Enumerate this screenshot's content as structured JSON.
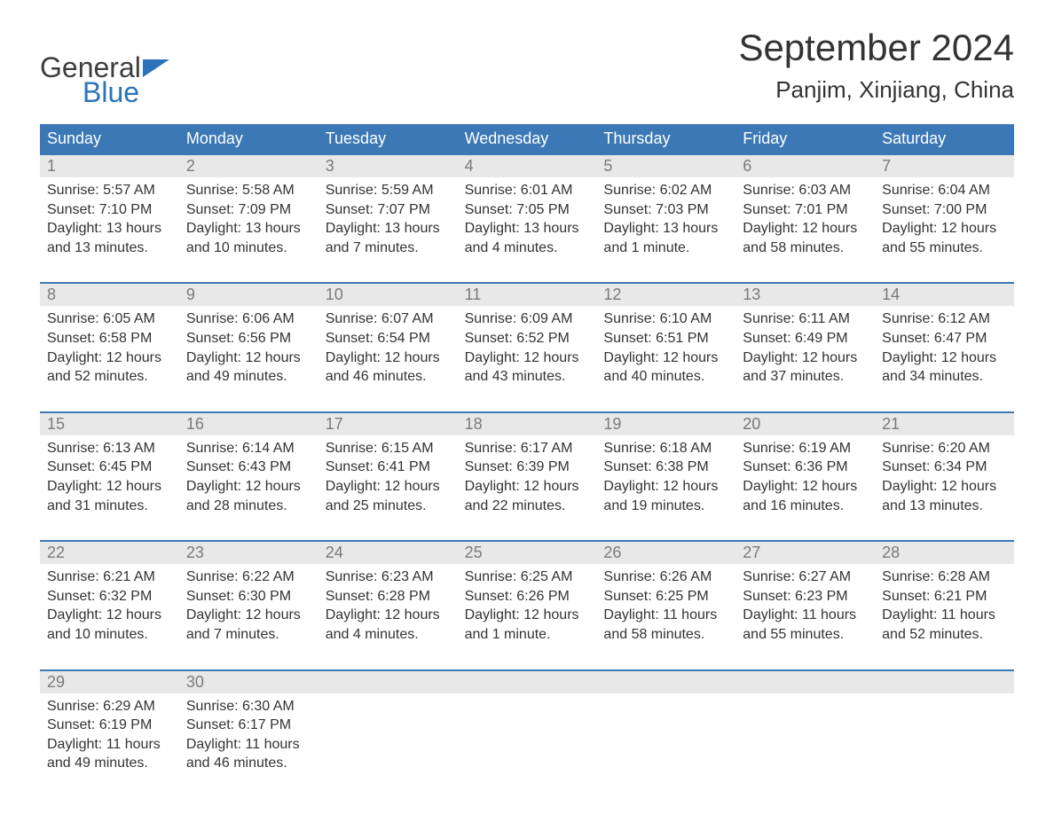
{
  "logo": {
    "line1": "General",
    "line2": "Blue",
    "flag_color": "#2b73b8"
  },
  "title": "September 2024",
  "location": "Panjim, Xinjiang, China",
  "colors": {
    "header_bg": "#3b78b5",
    "header_text": "#ffffff",
    "border": "#3b78b5",
    "daynum_bg": "#e8e8e8",
    "daynum_text": "#7a7a7a",
    "body_text": "#333333",
    "background": "#ffffff"
  },
  "typography": {
    "title_fontsize": 42,
    "location_fontsize": 26,
    "dow_fontsize": 18,
    "daynum_fontsize": 18,
    "body_fontsize": 16
  },
  "layout": {
    "columns": 7,
    "rows": 5
  },
  "days_of_week": [
    "Sunday",
    "Monday",
    "Tuesday",
    "Wednesday",
    "Thursday",
    "Friday",
    "Saturday"
  ],
  "weeks": [
    [
      {
        "n": "1",
        "sunrise": "Sunrise: 5:57 AM",
        "sunset": "Sunset: 7:10 PM",
        "dl1": "Daylight: 13 hours",
        "dl2": "and 13 minutes."
      },
      {
        "n": "2",
        "sunrise": "Sunrise: 5:58 AM",
        "sunset": "Sunset: 7:09 PM",
        "dl1": "Daylight: 13 hours",
        "dl2": "and 10 minutes."
      },
      {
        "n": "3",
        "sunrise": "Sunrise: 5:59 AM",
        "sunset": "Sunset: 7:07 PM",
        "dl1": "Daylight: 13 hours",
        "dl2": "and 7 minutes."
      },
      {
        "n": "4",
        "sunrise": "Sunrise: 6:01 AM",
        "sunset": "Sunset: 7:05 PM",
        "dl1": "Daylight: 13 hours",
        "dl2": "and 4 minutes."
      },
      {
        "n": "5",
        "sunrise": "Sunrise: 6:02 AM",
        "sunset": "Sunset: 7:03 PM",
        "dl1": "Daylight: 13 hours",
        "dl2": "and 1 minute."
      },
      {
        "n": "6",
        "sunrise": "Sunrise: 6:03 AM",
        "sunset": "Sunset: 7:01 PM",
        "dl1": "Daylight: 12 hours",
        "dl2": "and 58 minutes."
      },
      {
        "n": "7",
        "sunrise": "Sunrise: 6:04 AM",
        "sunset": "Sunset: 7:00 PM",
        "dl1": "Daylight: 12 hours",
        "dl2": "and 55 minutes."
      }
    ],
    [
      {
        "n": "8",
        "sunrise": "Sunrise: 6:05 AM",
        "sunset": "Sunset: 6:58 PM",
        "dl1": "Daylight: 12 hours",
        "dl2": "and 52 minutes."
      },
      {
        "n": "9",
        "sunrise": "Sunrise: 6:06 AM",
        "sunset": "Sunset: 6:56 PM",
        "dl1": "Daylight: 12 hours",
        "dl2": "and 49 minutes."
      },
      {
        "n": "10",
        "sunrise": "Sunrise: 6:07 AM",
        "sunset": "Sunset: 6:54 PM",
        "dl1": "Daylight: 12 hours",
        "dl2": "and 46 minutes."
      },
      {
        "n": "11",
        "sunrise": "Sunrise: 6:09 AM",
        "sunset": "Sunset: 6:52 PM",
        "dl1": "Daylight: 12 hours",
        "dl2": "and 43 minutes."
      },
      {
        "n": "12",
        "sunrise": "Sunrise: 6:10 AM",
        "sunset": "Sunset: 6:51 PM",
        "dl1": "Daylight: 12 hours",
        "dl2": "and 40 minutes."
      },
      {
        "n": "13",
        "sunrise": "Sunrise: 6:11 AM",
        "sunset": "Sunset: 6:49 PM",
        "dl1": "Daylight: 12 hours",
        "dl2": "and 37 minutes."
      },
      {
        "n": "14",
        "sunrise": "Sunrise: 6:12 AM",
        "sunset": "Sunset: 6:47 PM",
        "dl1": "Daylight: 12 hours",
        "dl2": "and 34 minutes."
      }
    ],
    [
      {
        "n": "15",
        "sunrise": "Sunrise: 6:13 AM",
        "sunset": "Sunset: 6:45 PM",
        "dl1": "Daylight: 12 hours",
        "dl2": "and 31 minutes."
      },
      {
        "n": "16",
        "sunrise": "Sunrise: 6:14 AM",
        "sunset": "Sunset: 6:43 PM",
        "dl1": "Daylight: 12 hours",
        "dl2": "and 28 minutes."
      },
      {
        "n": "17",
        "sunrise": "Sunrise: 6:15 AM",
        "sunset": "Sunset: 6:41 PM",
        "dl1": "Daylight: 12 hours",
        "dl2": "and 25 minutes."
      },
      {
        "n": "18",
        "sunrise": "Sunrise: 6:17 AM",
        "sunset": "Sunset: 6:39 PM",
        "dl1": "Daylight: 12 hours",
        "dl2": "and 22 minutes."
      },
      {
        "n": "19",
        "sunrise": "Sunrise: 6:18 AM",
        "sunset": "Sunset: 6:38 PM",
        "dl1": "Daylight: 12 hours",
        "dl2": "and 19 minutes."
      },
      {
        "n": "20",
        "sunrise": "Sunrise: 6:19 AM",
        "sunset": "Sunset: 6:36 PM",
        "dl1": "Daylight: 12 hours",
        "dl2": "and 16 minutes."
      },
      {
        "n": "21",
        "sunrise": "Sunrise: 6:20 AM",
        "sunset": "Sunset: 6:34 PM",
        "dl1": "Daylight: 12 hours",
        "dl2": "and 13 minutes."
      }
    ],
    [
      {
        "n": "22",
        "sunrise": "Sunrise: 6:21 AM",
        "sunset": "Sunset: 6:32 PM",
        "dl1": "Daylight: 12 hours",
        "dl2": "and 10 minutes."
      },
      {
        "n": "23",
        "sunrise": "Sunrise: 6:22 AM",
        "sunset": "Sunset: 6:30 PM",
        "dl1": "Daylight: 12 hours",
        "dl2": "and 7 minutes."
      },
      {
        "n": "24",
        "sunrise": "Sunrise: 6:23 AM",
        "sunset": "Sunset: 6:28 PM",
        "dl1": "Daylight: 12 hours",
        "dl2": "and 4 minutes."
      },
      {
        "n": "25",
        "sunrise": "Sunrise: 6:25 AM",
        "sunset": "Sunset: 6:26 PM",
        "dl1": "Daylight: 12 hours",
        "dl2": "and 1 minute."
      },
      {
        "n": "26",
        "sunrise": "Sunrise: 6:26 AM",
        "sunset": "Sunset: 6:25 PM",
        "dl1": "Daylight: 11 hours",
        "dl2": "and 58 minutes."
      },
      {
        "n": "27",
        "sunrise": "Sunrise: 6:27 AM",
        "sunset": "Sunset: 6:23 PM",
        "dl1": "Daylight: 11 hours",
        "dl2": "and 55 minutes."
      },
      {
        "n": "28",
        "sunrise": "Sunrise: 6:28 AM",
        "sunset": "Sunset: 6:21 PM",
        "dl1": "Daylight: 11 hours",
        "dl2": "and 52 minutes."
      }
    ],
    [
      {
        "n": "29",
        "sunrise": "Sunrise: 6:29 AM",
        "sunset": "Sunset: 6:19 PM",
        "dl1": "Daylight: 11 hours",
        "dl2": "and 49 minutes."
      },
      {
        "n": "30",
        "sunrise": "Sunrise: 6:30 AM",
        "sunset": "Sunset: 6:17 PM",
        "dl1": "Daylight: 11 hours",
        "dl2": "and 46 minutes."
      },
      null,
      null,
      null,
      null,
      null
    ]
  ]
}
